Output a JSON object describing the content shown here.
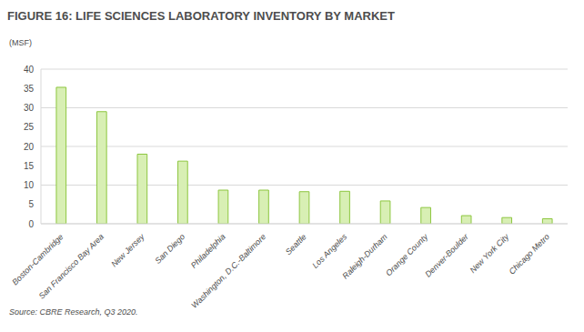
{
  "chart_data": {
    "type": "bar",
    "title": "FIGURE 16: LIFE SCIENCES LABORATORY INVENTORY BY MARKET",
    "ylabel": "(MSF)",
    "source": "Source: CBRE Research, Q3 2020.",
    "categories": [
      "Boston-Cambridge",
      "San Francisco Bay Area",
      "New Jersey",
      "San Diego",
      "Philadelphia",
      "Washington, D.C.-Baltimore",
      "Seattle",
      "Los Angeles",
      "Raleigh-Durham",
      "Orange County",
      "Denver-Boulder",
      "New York City",
      "Chicago Metro"
    ],
    "values": [
      35.3,
      29,
      18,
      16.2,
      8.7,
      8.7,
      8.3,
      8.4,
      5.9,
      4.2,
      2.1,
      1.6,
      1.3
    ],
    "color": "#d8efb4",
    "ylim": [
      0,
      40
    ],
    "yticks": [
      0,
      5,
      10,
      15,
      20,
      25,
      30,
      35,
      40
    ],
    "grid": true
  }
}
